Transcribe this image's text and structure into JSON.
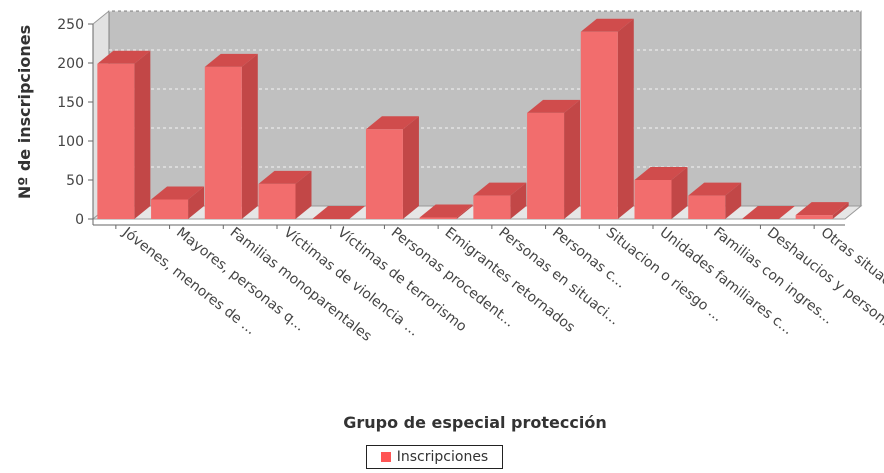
{
  "chart_data": {
    "type": "bar",
    "title": "",
    "xlabel": "Grupo de especial protección",
    "ylabel": "Nº de inscripciones",
    "ylim": [
      0,
      250
    ],
    "yticks": [
      0,
      50,
      100,
      150,
      200,
      250
    ],
    "grid": true,
    "legend_position": "bottom",
    "categories": [
      "Jóvenes, menores de ...",
      "Mayores, personas q...",
      "Familias monoparentales",
      "Víctimas de violencia ...",
      "Víctimas de terrorismo",
      "Personas procedent...",
      "Emigrantes retornados",
      "Personas en situaci...",
      "Personas c...",
      "Situacion o riesgo ...",
      "Unidades familiares c...",
      "Familias con ingres...",
      "Deshaucios y person...",
      "Otras situaciones"
    ],
    "series": [
      {
        "name": "Inscripciones",
        "color": "#ff5555",
        "values": [
          199,
          25,
          195,
          45,
          0,
          115,
          2,
          30,
          136,
          240,
          50,
          30,
          0,
          5
        ]
      }
    ]
  }
}
